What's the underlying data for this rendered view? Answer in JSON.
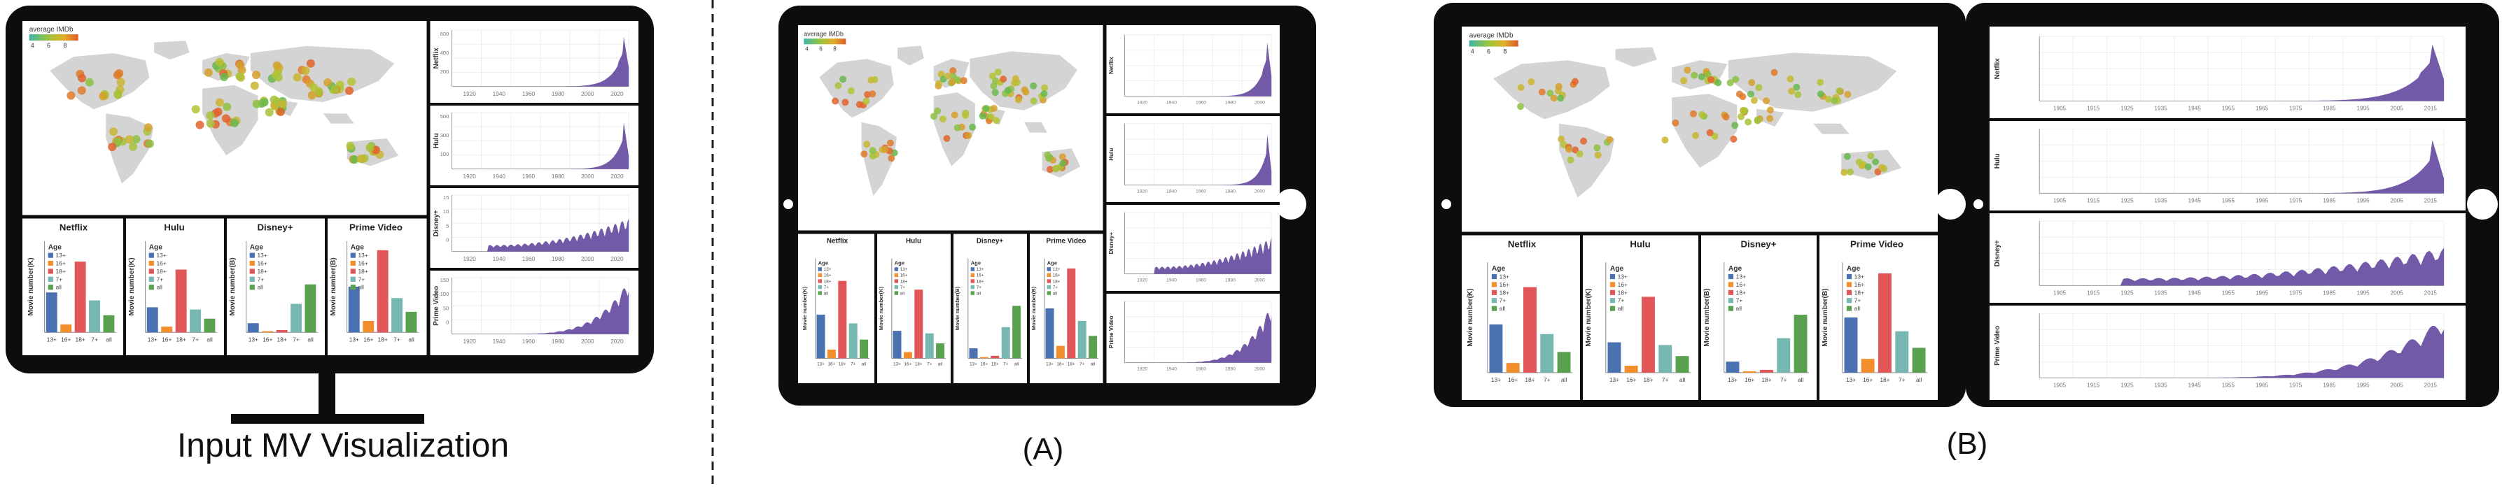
{
  "captions": {
    "input": "Input MV Visualization",
    "a": "(A)",
    "b": "(B)"
  },
  "legend": {
    "title": "average IMDb",
    "ticks": [
      "4",
      "6",
      "8"
    ]
  },
  "platforms": [
    "Netflix",
    "Hulu",
    "Disney+",
    "Prime Video"
  ],
  "bar_charts": {
    "ylabels": [
      "Movie number(K)",
      "Movie number(K)",
      "Movie number(B)",
      "Movie number(B)"
    ],
    "age_title": "Age",
    "age_groups": [
      "13+",
      "16+",
      "18+",
      "7+",
      "all"
    ],
    "categories_input": [
      "13+",
      "16+",
      "18+",
      "7+",
      "all"
    ],
    "categories_b": [
      "13+",
      "16+",
      "18+",
      "7+",
      "all"
    ]
  },
  "timelines": {
    "input_ticks": [
      "1920",
      "1940",
      "1960",
      "1980",
      "2000",
      "2020"
    ],
    "b_ticks": [
      "1905",
      "1915",
      "1925",
      "1935",
      "1945",
      "1955",
      "1965",
      "1975",
      "1985",
      "1995",
      "2005",
      "2015"
    ],
    "input_y_netflix": [
      "600",
      "400",
      "200"
    ],
    "input_y_hulu": [
      "500",
      "300",
      "100"
    ],
    "input_y_disney": [
      "15",
      "10",
      "5",
      "0"
    ],
    "input_y_prime": [
      "150",
      "100",
      "50",
      "0"
    ]
  },
  "colors": {
    "frame": "#0d0d0d",
    "area": "#6a51a3",
    "land": "#d4d4d4",
    "bar_blue": "#4a72b0",
    "bar_orange": "#f28e2b",
    "bar_red": "#e15759",
    "bar_teal": "#76b7b2",
    "bar_green": "#59a14f"
  },
  "chart_data": {
    "type": "bar",
    "categories": [
      "13+",
      "16+",
      "18+",
      "7+",
      "all"
    ],
    "series": [
      {
        "name": "Netflix",
        "values": [
          0.35,
          0.07,
          0.62,
          0.28,
          0.15
        ]
      },
      {
        "name": "Hulu",
        "values": [
          0.22,
          0.05,
          0.55,
          0.2,
          0.12
        ]
      },
      {
        "name": "Disney+",
        "values": [
          0.08,
          0.01,
          0.02,
          0.25,
          0.42
        ]
      },
      {
        "name": "Prime Video",
        "values": [
          0.4,
          0.1,
          0.72,
          0.3,
          0.18
        ]
      }
    ]
  }
}
